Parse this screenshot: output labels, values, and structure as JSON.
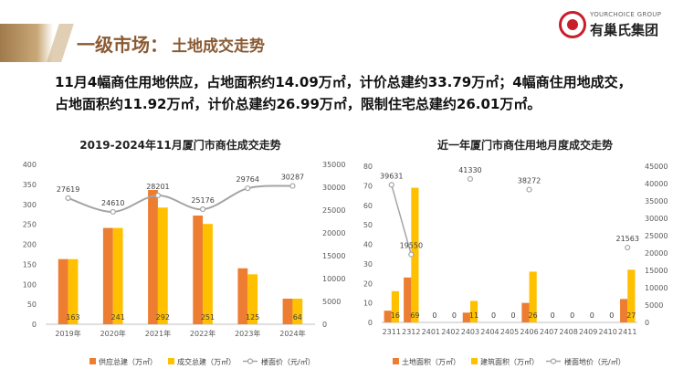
{
  "header": {
    "title": "一级市场：",
    "subtitle": "土地成交走势",
    "logo_en": "YOURCHOICE GROUP",
    "logo_cn": "有巢氏集团"
  },
  "summary": {
    "line1": "11月4幅商住用地供应，占地面积约14.09万㎡，计价总建约33.79万㎡；4幅商住用地成交，",
    "line2": "占地面积约11.92万㎡，计价总建约26.99万㎡，限制住宅总建约26.01万㎡。"
  },
  "colors": {
    "bar1": "#ed7d31",
    "bar2": "#ffc000",
    "line": "#a5a5a5"
  },
  "chart_data": [
    {
      "type": "bar",
      "title": "2019-2024年11月厦门市商住成交走势",
      "categories": [
        "2019年",
        "2020年",
        "2021年",
        "2022年",
        "2023年",
        "2024年"
      ],
      "series": [
        {
          "name": "供应总建（万㎡）",
          "kind": "bar",
          "axis": "left",
          "values": [
            163,
            241,
            336,
            272,
            140,
            64
          ]
        },
        {
          "name": "成交总建（万㎡）",
          "kind": "bar",
          "axis": "left",
          "values": [
            163,
            241,
            292,
            251,
            125,
            64
          ],
          "labels": [
            "163",
            "241",
            "292",
            "251",
            "125",
            "64"
          ]
        },
        {
          "name": "楼面价（元/㎡）",
          "kind": "line",
          "axis": "right",
          "values": [
            27619,
            24610,
            28201,
            25176,
            29764,
            30287
          ]
        }
      ],
      "ylim_left": [
        0,
        400
      ],
      "yticks_left": [
        0,
        50,
        100,
        150,
        200,
        250,
        300,
        350,
        400
      ],
      "ylim_right": [
        0,
        35000
      ],
      "yticks_right": [
        0,
        5000,
        10000,
        15000,
        20000,
        25000,
        30000,
        35000
      ],
      "grid": false,
      "legend": "bottom"
    },
    {
      "type": "bar",
      "title": "近一年厦门市商住用地月度成交走势",
      "categories": [
        "2311",
        "2312",
        "2401",
        "2402",
        "2403",
        "2404",
        "2405",
        "2406",
        "2407",
        "2408",
        "2409",
        "2410",
        "2411"
      ],
      "series": [
        {
          "name": "土地面积（万㎡）",
          "kind": "bar",
          "axis": "left",
          "values": [
            6,
            23,
            0,
            0,
            5,
            0,
            0,
            10,
            0,
            0,
            0,
            0,
            12
          ]
        },
        {
          "name": "建筑面积（万㎡）",
          "kind": "bar",
          "axis": "left",
          "values": [
            16,
            69,
            0,
            0,
            11,
            0,
            0,
            26,
            0,
            0,
            0,
            0,
            27
          ],
          "labels": [
            "16",
            "69",
            "0",
            "0",
            "11",
            "0",
            "0",
            "26",
            "0",
            "0",
            "0",
            "0",
            "27"
          ]
        },
        {
          "name": "楼面地价（元/㎡）",
          "kind": "line",
          "axis": "right",
          "values": [
            39631,
            19550,
            null,
            null,
            41330,
            null,
            null,
            38272,
            null,
            null,
            null,
            null,
            21563
          ]
        }
      ],
      "ylim_left": [
        0,
        80
      ],
      "yticks_left": [
        0,
        10,
        20,
        30,
        40,
        50,
        60,
        70,
        80
      ],
      "ylim_right": [
        0,
        45000
      ],
      "yticks_right": [
        0,
        5000,
        10000,
        15000,
        20000,
        25000,
        30000,
        35000,
        40000,
        45000
      ],
      "grid": false,
      "legend": "bottom"
    }
  ]
}
